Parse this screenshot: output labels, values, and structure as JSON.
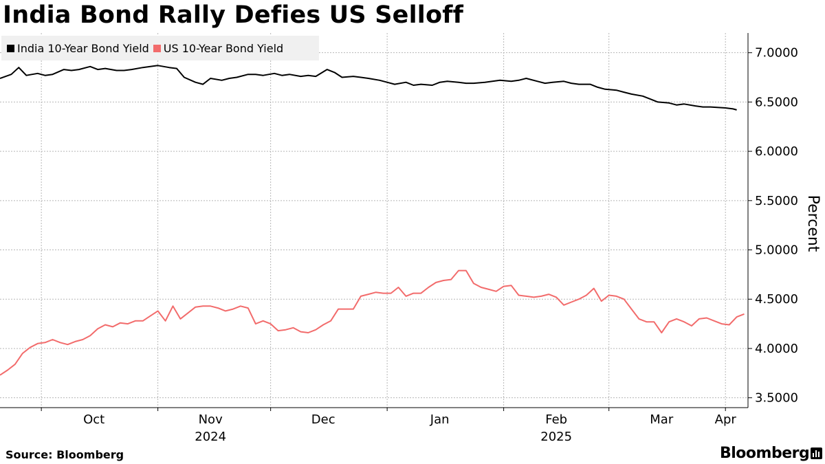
{
  "header": {
    "title": "India Bond Rally Defies US Selloff"
  },
  "footer": {
    "source": "Source: Bloomberg",
    "brand": "Bloomberg"
  },
  "colors": {
    "india": "#000000",
    "us": "#f26b6b",
    "grid": "#b5b5b5",
    "legend_bg": "#f0f0f0"
  },
  "chart_data": {
    "type": "line",
    "title": "India Bond Rally Defies US Selloff",
    "ylabel": "Percent",
    "ylim": [
      3.4,
      7.2
    ],
    "y_ticks": [
      "3.5000",
      "4.0000",
      "4.5000",
      "5.0000",
      "5.5000",
      "6.0000",
      "6.5000",
      "7.0000"
    ],
    "y_tick_values": [
      3.5,
      4.0,
      4.5,
      5.0,
      5.5,
      6.0,
      6.5,
      7.0
    ],
    "x_range": [
      "2024-09-20",
      "2025-04-07"
    ],
    "x_month_labels": [
      {
        "label": "Oct",
        "date": "2024-10-15"
      },
      {
        "label": "Nov",
        "date": "2024-11-15"
      },
      {
        "label": "Dec",
        "date": "2024-12-15"
      },
      {
        "label": "Jan",
        "date": "2025-01-15"
      },
      {
        "label": "Feb",
        "date": "2025-02-15"
      },
      {
        "label": "Mar",
        "date": "2025-03-15"
      },
      {
        "label": "Apr",
        "date": "2025-04-01"
      }
    ],
    "x_year_labels": [
      {
        "label": "2024",
        "date": "2024-11-15"
      },
      {
        "label": "2025",
        "date": "2025-02-15"
      }
    ],
    "x_gridlines": [
      "2024-10-01",
      "2024-11-01",
      "2024-12-01",
      "2025-01-01",
      "2025-02-01",
      "2025-03-01",
      "2025-04-01"
    ],
    "grid": true,
    "legend": "top-left",
    "series": [
      {
        "name": "India 10-Year Bond Yield",
        "color": "#000000",
        "x": [
          "2024-09-20",
          "2024-09-23",
          "2024-09-25",
          "2024-09-27",
          "2024-09-30",
          "2024-10-02",
          "2024-10-04",
          "2024-10-07",
          "2024-10-09",
          "2024-10-11",
          "2024-10-14",
          "2024-10-16",
          "2024-10-18",
          "2024-10-21",
          "2024-10-23",
          "2024-10-25",
          "2024-10-28",
          "2024-10-30",
          "2024-11-01",
          "2024-11-04",
          "2024-11-06",
          "2024-11-08",
          "2024-11-11",
          "2024-11-13",
          "2024-11-15",
          "2024-11-18",
          "2024-11-20",
          "2024-11-22",
          "2024-11-25",
          "2024-11-27",
          "2024-11-29",
          "2024-12-02",
          "2024-12-04",
          "2024-12-06",
          "2024-12-09",
          "2024-12-11",
          "2024-12-13",
          "2024-12-16",
          "2024-12-18",
          "2024-12-20",
          "2024-12-23",
          "2024-12-25",
          "2024-12-27",
          "2024-12-30",
          "2025-01-01",
          "2025-01-03",
          "2025-01-06",
          "2025-01-08",
          "2025-01-10",
          "2025-01-13",
          "2025-01-15",
          "2025-01-17",
          "2025-01-20",
          "2025-01-22",
          "2025-01-24",
          "2025-01-27",
          "2025-01-29",
          "2025-01-31",
          "2025-02-03",
          "2025-02-05",
          "2025-02-07",
          "2025-02-10",
          "2025-02-12",
          "2025-02-14",
          "2025-02-17",
          "2025-02-19",
          "2025-02-21",
          "2025-02-24",
          "2025-02-26",
          "2025-02-28",
          "2025-03-03",
          "2025-03-05",
          "2025-03-07",
          "2025-03-10",
          "2025-03-12",
          "2025-03-14",
          "2025-03-17",
          "2025-03-19",
          "2025-03-21",
          "2025-03-24",
          "2025-03-26",
          "2025-03-28",
          "2025-04-01",
          "2025-04-03",
          "2025-04-04"
        ],
        "values": [
          6.74,
          6.78,
          6.85,
          6.77,
          6.79,
          6.77,
          6.78,
          6.83,
          6.82,
          6.83,
          6.86,
          6.83,
          6.84,
          6.82,
          6.82,
          6.83,
          6.85,
          6.86,
          6.87,
          6.85,
          6.84,
          6.75,
          6.7,
          6.68,
          6.74,
          6.72,
          6.74,
          6.75,
          6.78,
          6.78,
          6.77,
          6.79,
          6.77,
          6.78,
          6.76,
          6.77,
          6.76,
          6.83,
          6.8,
          6.75,
          6.76,
          6.75,
          6.74,
          6.72,
          6.7,
          6.68,
          6.7,
          6.67,
          6.68,
          6.67,
          6.7,
          6.71,
          6.7,
          6.69,
          6.69,
          6.7,
          6.71,
          6.72,
          6.71,
          6.72,
          6.74,
          6.71,
          6.69,
          6.7,
          6.71,
          6.69,
          6.68,
          6.68,
          6.65,
          6.63,
          6.62,
          6.6,
          6.58,
          6.56,
          6.53,
          6.5,
          6.49,
          6.47,
          6.48,
          6.46,
          6.45,
          6.45,
          6.44,
          6.43,
          6.42
        ]
      },
      {
        "name": "US 10-Year Bond Yield",
        "color": "#f26b6b",
        "x": [
          "2024-09-20",
          "2024-09-22",
          "2024-09-24",
          "2024-09-26",
          "2024-09-28",
          "2024-09-30",
          "2024-10-02",
          "2024-10-04",
          "2024-10-06",
          "2024-10-08",
          "2024-10-10",
          "2024-10-12",
          "2024-10-14",
          "2024-10-16",
          "2024-10-18",
          "2024-10-20",
          "2024-10-22",
          "2024-10-24",
          "2024-10-26",
          "2024-10-28",
          "2024-10-30",
          "2024-11-01",
          "2024-11-03",
          "2024-11-05",
          "2024-11-07",
          "2024-11-09",
          "2024-11-11",
          "2024-11-13",
          "2024-11-15",
          "2024-11-17",
          "2024-11-19",
          "2024-11-21",
          "2024-11-23",
          "2024-11-25",
          "2024-11-27",
          "2024-11-29",
          "2024-12-01",
          "2024-12-03",
          "2024-12-05",
          "2024-12-07",
          "2024-12-09",
          "2024-12-11",
          "2024-12-13",
          "2024-12-15",
          "2024-12-17",
          "2024-12-19",
          "2024-12-21",
          "2024-12-23",
          "2024-12-25",
          "2024-12-27",
          "2024-12-29",
          "2024-12-31",
          "2025-01-02",
          "2025-01-04",
          "2025-01-06",
          "2025-01-08",
          "2025-01-10",
          "2025-01-12",
          "2025-01-14",
          "2025-01-16",
          "2025-01-18",
          "2025-01-20",
          "2025-01-22",
          "2025-01-24",
          "2025-01-26",
          "2025-01-28",
          "2025-01-30",
          "2025-02-01",
          "2025-02-03",
          "2025-02-05",
          "2025-02-07",
          "2025-02-09",
          "2025-02-11",
          "2025-02-13",
          "2025-02-15",
          "2025-02-17",
          "2025-02-19",
          "2025-02-21",
          "2025-02-23",
          "2025-02-25",
          "2025-02-27",
          "2025-03-01",
          "2025-03-03",
          "2025-03-05",
          "2025-03-07",
          "2025-03-09",
          "2025-03-11",
          "2025-03-13",
          "2025-03-15",
          "2025-03-17",
          "2025-03-19",
          "2025-03-21",
          "2025-03-23",
          "2025-03-25",
          "2025-03-27",
          "2025-03-29",
          "2025-03-31",
          "2025-04-02",
          "2025-04-04",
          "2025-04-06"
        ],
        "values": [
          3.73,
          3.78,
          3.84,
          3.95,
          4.01,
          4.05,
          4.06,
          4.09,
          4.06,
          4.04,
          4.07,
          4.09,
          4.13,
          4.2,
          4.24,
          4.22,
          4.26,
          4.25,
          4.28,
          4.28,
          4.33,
          4.38,
          4.28,
          4.43,
          4.3,
          4.36,
          4.42,
          4.43,
          4.43,
          4.41,
          4.38,
          4.4,
          4.43,
          4.41,
          4.25,
          4.28,
          4.25,
          4.18,
          4.19,
          4.21,
          4.17,
          4.16,
          4.19,
          4.24,
          4.28,
          4.4,
          4.4,
          4.4,
          4.53,
          4.55,
          4.57,
          4.56,
          4.56,
          4.62,
          4.53,
          4.56,
          4.56,
          4.62,
          4.67,
          4.69,
          4.7,
          4.79,
          4.79,
          4.66,
          4.62,
          4.6,
          4.58,
          4.63,
          4.64,
          4.54,
          4.53,
          4.52,
          4.53,
          4.55,
          4.52,
          4.44,
          4.47,
          4.5,
          4.54,
          4.61,
          4.48,
          4.54,
          4.53,
          4.5,
          4.4,
          4.3,
          4.27,
          4.27,
          4.16,
          4.27,
          4.3,
          4.27,
          4.23,
          4.3,
          4.31,
          4.28,
          4.25,
          4.24,
          4.32,
          4.35
        ]
      }
    ]
  }
}
